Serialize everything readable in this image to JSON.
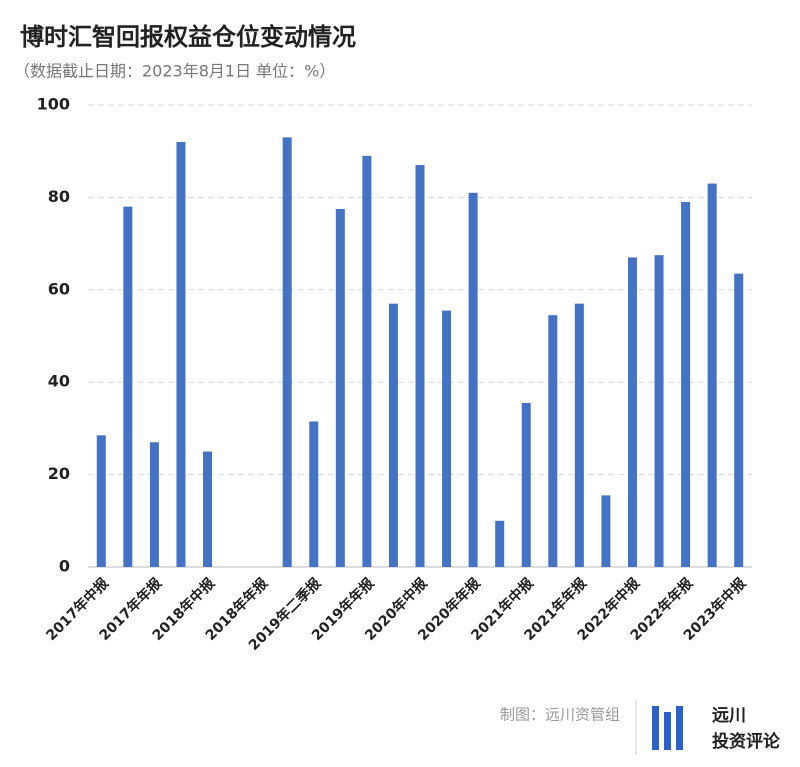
{
  "chart_data": {
    "type": "bar",
    "title": "博时汇智回报权益仓位变动情况",
    "subtitle": "（数据截止日期：2023年8月1日  单位：%）",
    "categories": [
      "2017年中报",
      null,
      "2017年年报",
      null,
      "2018年中报",
      null,
      "2018年年报",
      null,
      "2019年二季报",
      null,
      "2019年年报",
      null,
      "2020年中报",
      null,
      "2020年年报",
      null,
      "2021年中报",
      null,
      "2021年年报",
      null,
      "2022年中报",
      null,
      "2022年年报",
      null,
      "2023年中报"
    ],
    "values": [
      28.5,
      78,
      27,
      92,
      25,
      null,
      null,
      93,
      31.5,
      77.5,
      89,
      57,
      87,
      55.5,
      81,
      10,
      35.5,
      54.5,
      57,
      15.5,
      67,
      67.5,
      79,
      83,
      63.5
    ],
    "color": "#4472c4",
    "ylim": [
      0,
      100
    ],
    "yticks": [
      0,
      20,
      40,
      60,
      80,
      100
    ],
    "grid": true,
    "credit": "制图：远川资管组",
    "logo": [
      "远川",
      "投资评论"
    ]
  }
}
